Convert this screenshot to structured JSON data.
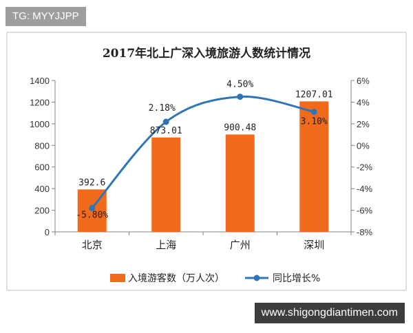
{
  "watermark_badge": "TG: MYYJJPP",
  "footer_badge": "www.shigongdiantimen.com",
  "chart_data": {
    "type": "bar+line",
    "title": "2017年北上广深入境旅游人数统计情况",
    "categories": [
      "北京",
      "上海",
      "广州",
      "深圳"
    ],
    "series": [
      {
        "name": "入境游客数（万人次）",
        "type": "bar",
        "axis": "left",
        "values": [
          392.6,
          873.01,
          900.48,
          1207.01
        ],
        "labels": [
          "392.6",
          "873.01",
          "900.48",
          "1207.01"
        ],
        "color": "#f26b1d"
      },
      {
        "name": "同比增长%",
        "type": "line",
        "axis": "right",
        "values": [
          -5.8,
          2.18,
          4.5,
          3.1
        ],
        "labels": [
          "-5.80%",
          "2.18%",
          "4.50%",
          "3.10%"
        ],
        "color": "#2e75b6"
      }
    ],
    "y_left": {
      "min": 0,
      "max": 1400,
      "ticks": [
        "0",
        "200",
        "400",
        "600",
        "800",
        "1000",
        "1200",
        "1400"
      ]
    },
    "y_right": {
      "min": -8,
      "max": 6,
      "ticks": [
        "-8%",
        "-6%",
        "-4%",
        "-2%",
        "0%",
        "2%",
        "4%",
        "6%"
      ]
    },
    "grid": false,
    "legend": "bottom"
  }
}
